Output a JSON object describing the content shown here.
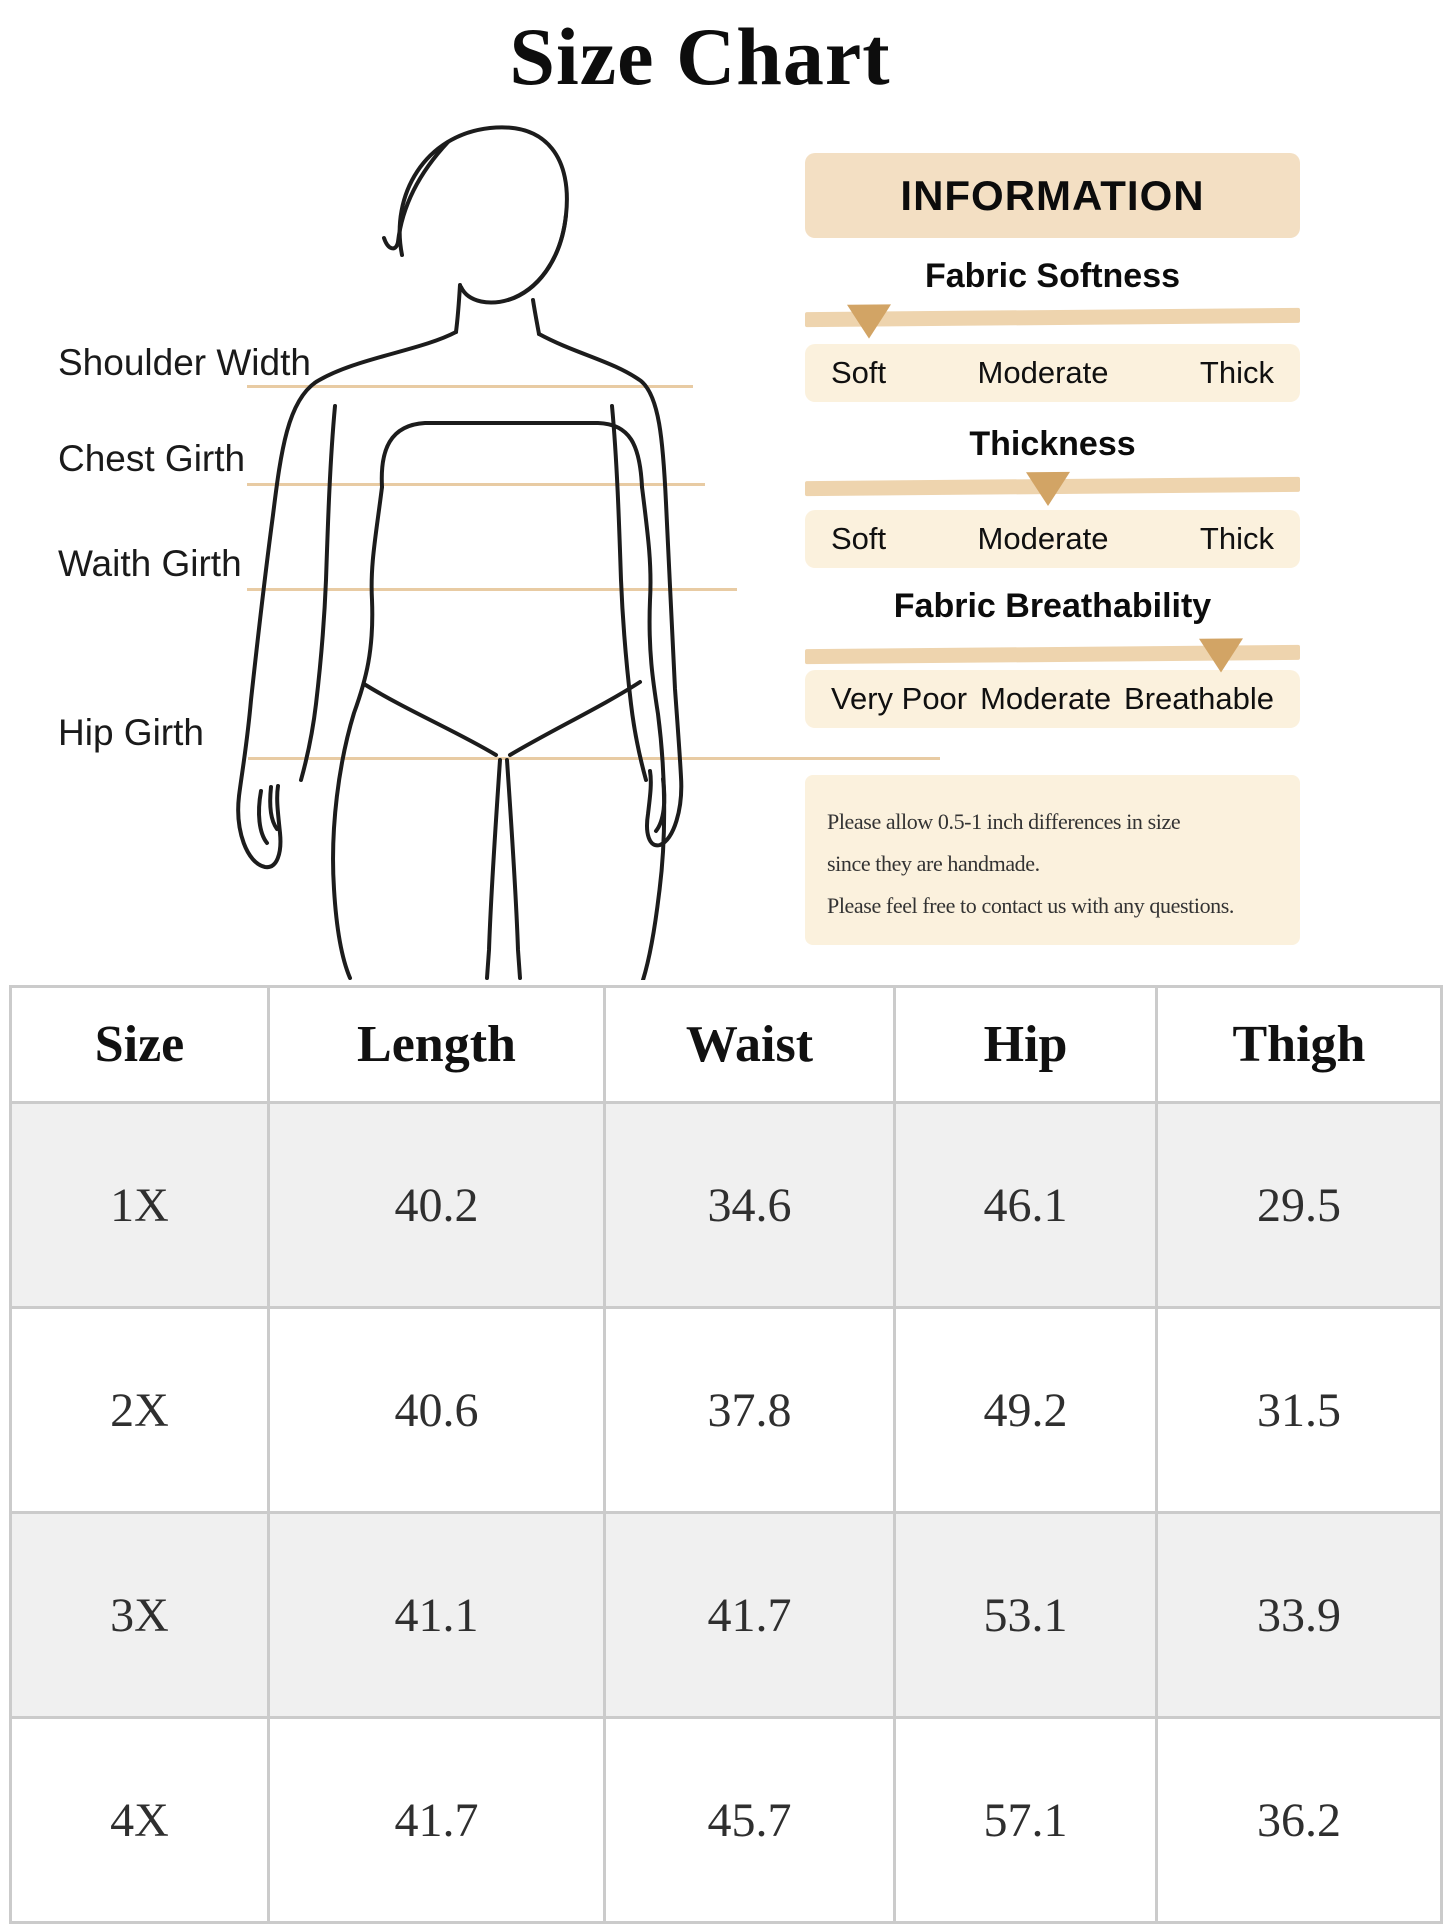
{
  "title": "Size Chart",
  "diagram": {
    "labels": [
      "Shoulder Width",
      "Chest Girth",
      "Waith Girth",
      "Hip Girth"
    ]
  },
  "info_panel": {
    "header": "INFORMATION",
    "scales": [
      {
        "title": "Fabric Softness",
        "labels": [
          "Soft",
          "Moderate",
          "Thick"
        ],
        "indicator_position_pct": 12.9
      },
      {
        "title": "Thickness",
        "labels": [
          "Soft",
          "Moderate",
          "Thick"
        ],
        "indicator_position_pct": 49
      },
      {
        "title": "Fabric Breathability",
        "labels": [
          "Very Poor",
          "Moderate",
          "Breathable"
        ],
        "indicator_position_pct": 84
      }
    ],
    "note_lines": [
      "Please allow 0.5-1 inch differences in size",
      "since they are handmade.",
      "Please feel free to contact us with any questions."
    ]
  },
  "size_table": {
    "columns": [
      "Size",
      "Length",
      "Waist",
      "Hip",
      "Thigh"
    ],
    "rows": [
      [
        "1X",
        "40.2",
        "34.6",
        "46.1",
        "29.5"
      ],
      [
        "2X",
        "40.6",
        "37.8",
        "49.2",
        "31.5"
      ],
      [
        "3X",
        "41.1",
        "41.7",
        "53.1",
        "33.9"
      ],
      [
        "4X",
        "41.7",
        "45.7",
        "57.1",
        "36.2"
      ]
    ]
  },
  "colors": {
    "panel_header_bg": "#f3dfc3",
    "scale_track": "#eed4ae",
    "indicator": "#d2a465",
    "scale_row_bg": "#fbf1dd",
    "note_bg": "#fbf1dd",
    "measure_line": "#e8cba3",
    "table_border": "#cbcbcb",
    "table_alt_row": "#f0f0f0"
  }
}
